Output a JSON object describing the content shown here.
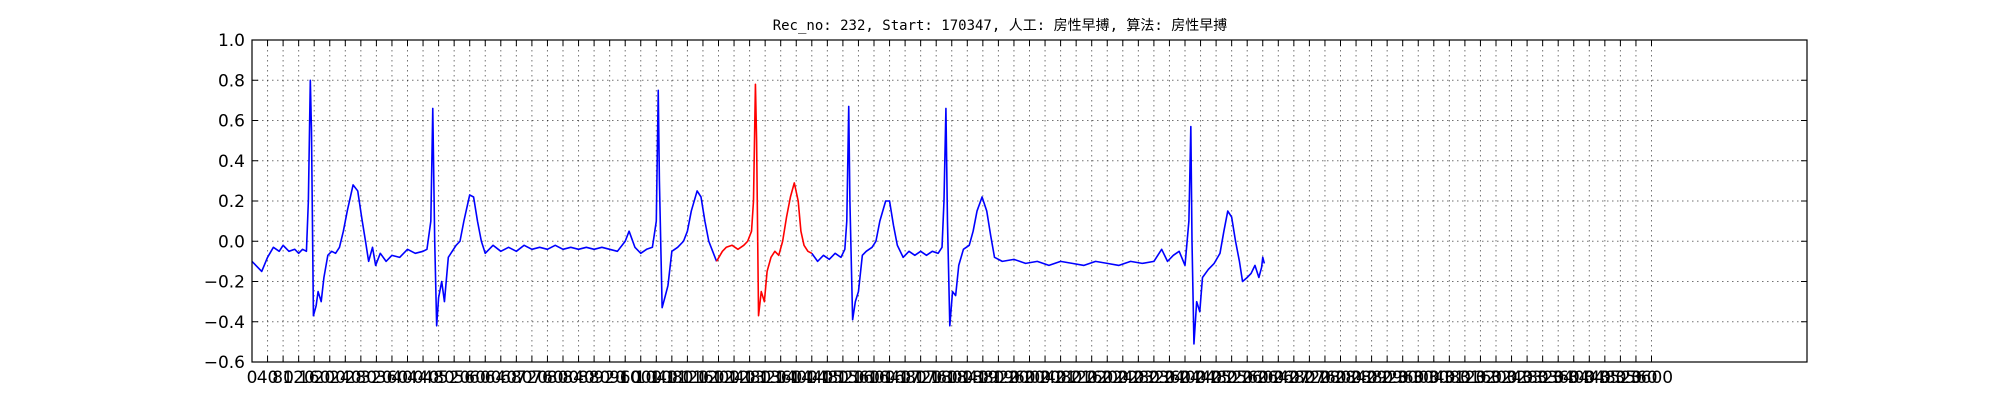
{
  "chart_data": {
    "type": "line",
    "title": "Rec_no: 232, Start: 170347, 人工: 房性早搏, 算法: 房性早搏",
    "xlabel": "",
    "ylabel": "",
    "xlim": [
      0,
      4000
    ],
    "ylim": [
      -0.6,
      1.0
    ],
    "grid": true,
    "y_ticks": [
      -0.6,
      -0.4,
      -0.2,
      0.0,
      0.2,
      0.4,
      0.6,
      0.8,
      1.0
    ],
    "y_tick_labels": [
      "−0.6",
      "−0.4",
      "−0.2",
      "0.0",
      "0.2",
      "0.4",
      "0.6",
      "0.8",
      "1.0"
    ],
    "x_tick_step": 40,
    "x_tick_max": 3600,
    "colors": {
      "normal": "#0000ff",
      "highlight": "#ff0000"
    },
    "series": [
      {
        "color": "#0000ff",
        "points": [
          [
            0,
            -0.1
          ],
          [
            10,
            -0.12
          ],
          [
            25,
            -0.15
          ],
          [
            40,
            -0.08
          ],
          [
            55,
            -0.03
          ],
          [
            70,
            -0.05
          ],
          [
            80,
            -0.02
          ],
          [
            95,
            -0.05
          ],
          [
            110,
            -0.04
          ],
          [
            120,
            -0.06
          ],
          [
            130,
            -0.04
          ],
          [
            140,
            -0.05
          ],
          [
            145,
            0.2
          ],
          [
            150,
            0.8
          ],
          [
            153,
            0.55
          ],
          [
            158,
            -0.37
          ],
          [
            165,
            -0.32
          ],
          [
            170,
            -0.25
          ],
          [
            178,
            -0.3
          ],
          [
            185,
            -0.18
          ],
          [
            195,
            -0.07
          ],
          [
            205,
            -0.05
          ],
          [
            215,
            -0.06
          ],
          [
            225,
            -0.03
          ],
          [
            235,
            0.05
          ],
          [
            245,
            0.15
          ],
          [
            260,
            0.28
          ],
          [
            272,
            0.25
          ],
          [
            282,
            0.12
          ],
          [
            292,
            0.0
          ],
          [
            300,
            -0.1
          ],
          [
            310,
            -0.03
          ],
          [
            318,
            -0.12
          ],
          [
            330,
            -0.06
          ],
          [
            345,
            -0.1
          ],
          [
            360,
            -0.07
          ],
          [
            380,
            -0.08
          ],
          [
            400,
            -0.04
          ],
          [
            420,
            -0.06
          ],
          [
            440,
            -0.05
          ],
          [
            450,
            -0.04
          ],
          [
            460,
            0.1
          ],
          [
            465,
            0.66
          ],
          [
            470,
            0.0
          ],
          [
            475,
            -0.42
          ],
          [
            480,
            -0.28
          ],
          [
            488,
            -0.2
          ],
          [
            495,
            -0.3
          ],
          [
            505,
            -0.08
          ],
          [
            515,
            -0.05
          ],
          [
            525,
            -0.02
          ],
          [
            535,
            0.0
          ],
          [
            545,
            0.1
          ],
          [
            560,
            0.23
          ],
          [
            570,
            0.22
          ],
          [
            580,
            0.1
          ],
          [
            590,
            0.0
          ],
          [
            600,
            -0.06
          ],
          [
            620,
            -0.02
          ],
          [
            640,
            -0.05
          ],
          [
            660,
            -0.03
          ],
          [
            680,
            -0.05
          ],
          [
            700,
            -0.02
          ],
          [
            720,
            -0.04
          ],
          [
            740,
            -0.03
          ],
          [
            760,
            -0.04
          ],
          [
            780,
            -0.02
          ],
          [
            800,
            -0.04
          ],
          [
            820,
            -0.03
          ],
          [
            840,
            -0.04
          ],
          [
            860,
            -0.03
          ],
          [
            880,
            -0.04
          ],
          [
            900,
            -0.03
          ],
          [
            920,
            -0.04
          ],
          [
            940,
            -0.05
          ],
          [
            960,
            0.0
          ],
          [
            970,
            0.05
          ],
          [
            985,
            -0.03
          ],
          [
            1000,
            -0.06
          ],
          [
            1015,
            -0.04
          ],
          [
            1030,
            -0.03
          ],
          [
            1040,
            0.1
          ],
          [
            1045,
            0.75
          ],
          [
            1048,
            0.3
          ],
          [
            1055,
            -0.33
          ],
          [
            1062,
            -0.28
          ],
          [
            1070,
            -0.22
          ],
          [
            1080,
            -0.05
          ],
          [
            1095,
            -0.03
          ],
          [
            1110,
            0.0
          ],
          [
            1120,
            0.05
          ],
          [
            1130,
            0.15
          ],
          [
            1145,
            0.25
          ],
          [
            1155,
            0.22
          ],
          [
            1165,
            0.1
          ],
          [
            1175,
            0.0
          ],
          [
            1185,
            -0.05
          ],
          [
            1195,
            -0.1
          ]
        ]
      },
      {
        "color": "#ff0000",
        "points": [
          [
            1195,
            -0.1
          ],
          [
            1210,
            -0.05
          ],
          [
            1220,
            -0.03
          ],
          [
            1235,
            -0.02
          ],
          [
            1250,
            -0.04
          ],
          [
            1265,
            -0.02
          ],
          [
            1275,
            0.0
          ],
          [
            1285,
            0.05
          ],
          [
            1290,
            0.2
          ],
          [
            1295,
            0.78
          ],
          [
            1298,
            0.5
          ],
          [
            1303,
            -0.37
          ],
          [
            1310,
            -0.25
          ],
          [
            1318,
            -0.3
          ],
          [
            1325,
            -0.15
          ],
          [
            1335,
            -0.08
          ],
          [
            1345,
            -0.05
          ],
          [
            1355,
            -0.07
          ],
          [
            1365,
            0.0
          ],
          [
            1375,
            0.12
          ],
          [
            1385,
            0.22
          ],
          [
            1395,
            0.29
          ],
          [
            1405,
            0.2
          ],
          [
            1412,
            0.05
          ],
          [
            1420,
            -0.02
          ],
          [
            1430,
            -0.05
          ],
          [
            1440,
            -0.06
          ]
        ]
      },
      {
        "color": "#0000ff",
        "points": [
          [
            1440,
            -0.06
          ],
          [
            1455,
            -0.1
          ],
          [
            1470,
            -0.07
          ],
          [
            1485,
            -0.09
          ],
          [
            1500,
            -0.06
          ],
          [
            1515,
            -0.08
          ],
          [
            1525,
            -0.04
          ],
          [
            1530,
            0.1
          ],
          [
            1535,
            0.67
          ],
          [
            1538,
            0.2
          ],
          [
            1545,
            -0.39
          ],
          [
            1552,
            -0.3
          ],
          [
            1560,
            -0.25
          ],
          [
            1570,
            -0.07
          ],
          [
            1580,
            -0.05
          ],
          [
            1595,
            -0.03
          ],
          [
            1605,
            0.0
          ],
          [
            1615,
            0.1
          ],
          [
            1630,
            0.2
          ],
          [
            1640,
            0.2
          ],
          [
            1650,
            0.08
          ],
          [
            1660,
            -0.02
          ],
          [
            1675,
            -0.08
          ],
          [
            1690,
            -0.05
          ],
          [
            1705,
            -0.07
          ],
          [
            1720,
            -0.05
          ],
          [
            1735,
            -0.07
          ],
          [
            1750,
            -0.05
          ],
          [
            1765,
            -0.06
          ],
          [
            1775,
            -0.03
          ],
          [
            1780,
            0.2
          ],
          [
            1785,
            0.66
          ],
          [
            1789,
            0.1
          ],
          [
            1795,
            -0.42
          ],
          [
            1802,
            -0.25
          ],
          [
            1810,
            -0.27
          ],
          [
            1818,
            -0.12
          ],
          [
            1830,
            -0.04
          ],
          [
            1845,
            -0.02
          ],
          [
            1855,
            0.05
          ],
          [
            1865,
            0.15
          ],
          [
            1878,
            0.22
          ],
          [
            1890,
            0.15
          ],
          [
            1900,
            0.03
          ],
          [
            1910,
            -0.08
          ],
          [
            1930,
            -0.1
          ],
          [
            1960,
            -0.09
          ],
          [
            1990,
            -0.11
          ],
          [
            2020,
            -0.1
          ],
          [
            2050,
            -0.12
          ],
          [
            2080,
            -0.1
          ],
          [
            2110,
            -0.11
          ],
          [
            2140,
            -0.12
          ],
          [
            2170,
            -0.1
          ],
          [
            2200,
            -0.11
          ],
          [
            2230,
            -0.12
          ],
          [
            2260,
            -0.1
          ],
          [
            2290,
            -0.11
          ],
          [
            2320,
            -0.1
          ],
          [
            2340,
            -0.04
          ],
          [
            2355,
            -0.1
          ],
          [
            2370,
            -0.07
          ],
          [
            2385,
            -0.05
          ],
          [
            2400,
            -0.12
          ],
          [
            2410,
            0.1
          ],
          [
            2415,
            0.57
          ],
          [
            2418,
            0.0
          ],
          [
            2423,
            -0.51
          ],
          [
            2430,
            -0.3
          ],
          [
            2438,
            -0.35
          ],
          [
            2445,
            -0.18
          ],
          [
            2460,
            -0.14
          ],
          [
            2475,
            -0.11
          ],
          [
            2490,
            -0.06
          ],
          [
            2500,
            0.05
          ],
          [
            2510,
            0.15
          ],
          [
            2520,
            0.12
          ],
          [
            2530,
            0.0
          ],
          [
            2540,
            -0.1
          ],
          [
            2548,
            -0.2
          ],
          [
            2560,
            -0.18
          ],
          [
            2570,
            -0.16
          ],
          [
            2580,
            -0.12
          ],
          [
            2590,
            -0.18
          ],
          [
            2597,
            -0.13
          ],
          [
            2600,
            -0.08
          ],
          [
            2604,
            -0.11
          ]
        ]
      }
    ]
  }
}
